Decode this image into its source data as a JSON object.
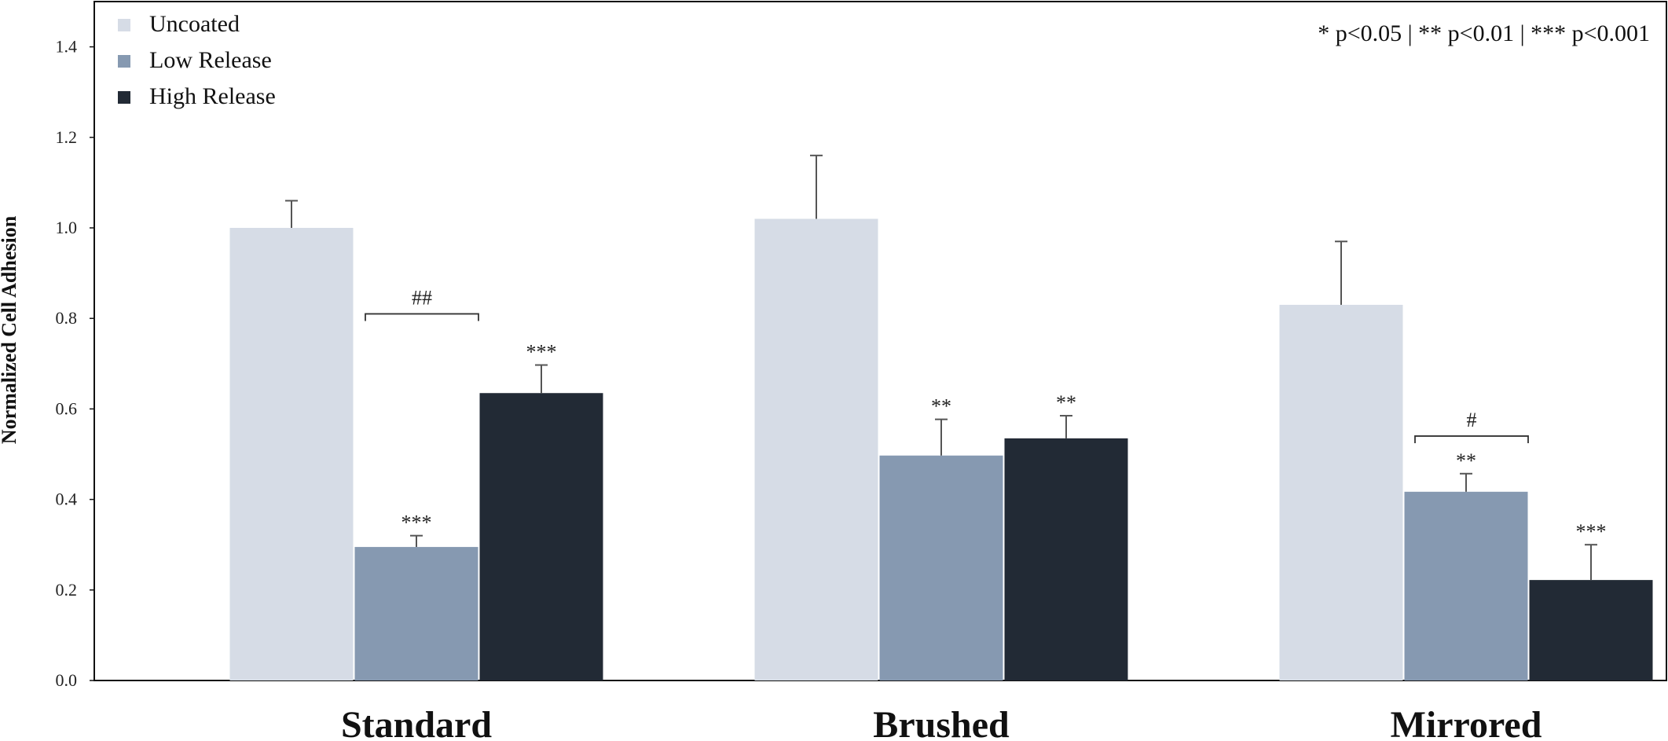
{
  "chart_data": {
    "type": "bar",
    "title": "",
    "xlabel": "",
    "ylabel": "Normalized Cell Adhesion",
    "ylim": [
      0,
      1.5
    ],
    "yticks": [
      "0.0",
      "0.2",
      "0.4",
      "0.6",
      "0.8",
      "1.0",
      "1.2",
      "1.4"
    ],
    "categories": [
      "Standard",
      "Brushed",
      "Mirrored"
    ],
    "grid": false,
    "legend_position": "top-left",
    "series": [
      {
        "name": "Uncoated",
        "color": "#d6dce6",
        "values": [
          1.0,
          1.02,
          0.83
        ],
        "errors": [
          0.06,
          0.14,
          0.14
        ],
        "significance": [
          "",
          "",
          ""
        ]
      },
      {
        "name": "Low Release",
        "color": "#8699b1",
        "values": [
          0.295,
          0.497,
          0.417
        ],
        "errors": [
          0.025,
          0.08,
          0.04
        ],
        "significance": [
          "***",
          "**",
          "**"
        ]
      },
      {
        "name": "High Release",
        "color": "#222a35",
        "values": [
          0.635,
          0.535,
          0.222
        ],
        "errors": [
          0.062,
          0.05,
          0.078
        ],
        "significance": [
          "***",
          "**",
          "***"
        ]
      }
    ],
    "brackets": [
      {
        "category": "Standard",
        "from_series": 1,
        "to_series": 2,
        "y": 0.81,
        "label": "##"
      },
      {
        "category": "Mirrored",
        "from_series": 1,
        "to_series": 2,
        "y": 0.54,
        "label": "#"
      }
    ],
    "annotation": "* p<0.05 | ** p<0.01 | *** p<0.001"
  }
}
